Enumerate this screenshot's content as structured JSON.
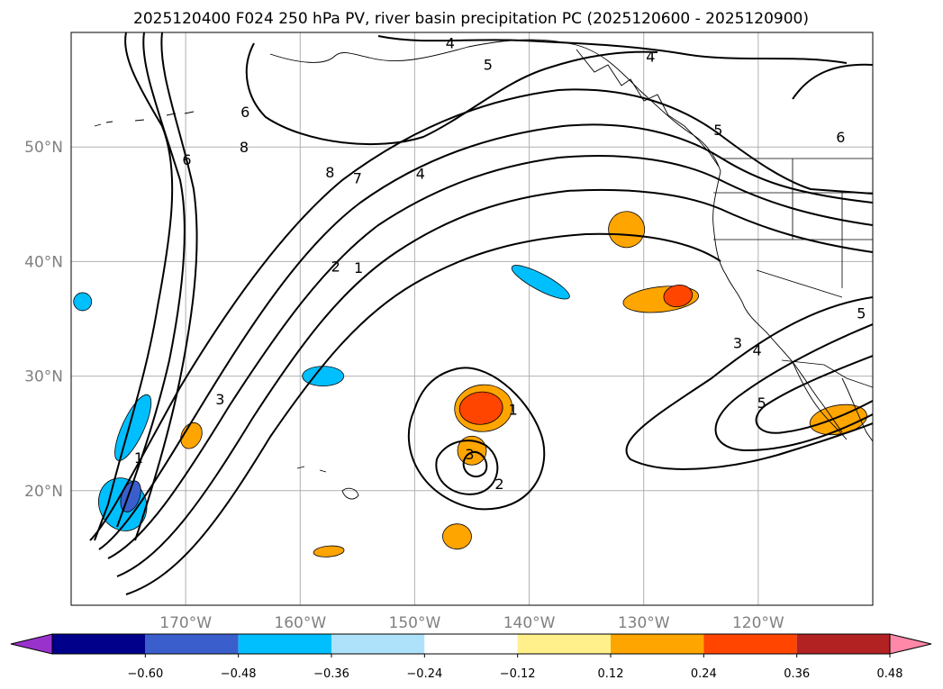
{
  "chart_data": {
    "type": "contour-map",
    "title": "2025120400 F024 250 hPa PV, river basin precipitation PC (2025120600 - 2025120900)",
    "lat_range": [
      10,
      60
    ],
    "lon_range": [
      -180,
      -110
    ],
    "lat_ticks": [
      {
        "value": 50,
        "label": "50°N"
      },
      {
        "value": 40,
        "label": "40°N"
      },
      {
        "value": 30,
        "label": "30°N"
      },
      {
        "value": 20,
        "label": "20°N"
      }
    ],
    "lon_ticks": [
      {
        "value": -170,
        "label": "170°W"
      },
      {
        "value": -160,
        "label": "160°W"
      },
      {
        "value": -150,
        "label": "150°W"
      },
      {
        "value": -140,
        "label": "140°W"
      },
      {
        "value": -130,
        "label": "130°W"
      },
      {
        "value": -120,
        "label": "120°W"
      }
    ],
    "colorbar": {
      "bounds": [
        -0.72,
        -0.6,
        -0.48,
        -0.36,
        -0.24,
        -0.12,
        0.12,
        0.24,
        0.36,
        0.48,
        0.6,
        0.72
      ],
      "colors": [
        "#9932cc",
        "#00008b",
        "#3a5fcd",
        "#00bfff",
        "#aee2fa",
        "#ffffff",
        "#fff08c",
        "#ffa500",
        "#ff4500",
        "#b22222",
        "#ff88a8"
      ],
      "extend": "both",
      "tick_labels": [
        "−0.60",
        "−0.48",
        "−0.36",
        "−0.24",
        "−0.12",
        "0.12",
        "0.24",
        "0.36",
        "0.48",
        "0.60"
      ]
    },
    "pv_contour_labels": [
      {
        "text": "4",
        "lon": -146.9,
        "lat": 59.1
      },
      {
        "text": "5",
        "lon": -143.6,
        "lat": 57.2
      },
      {
        "text": "4",
        "lon": -129.4,
        "lat": 57.9
      },
      {
        "text": "5",
        "lon": -123.5,
        "lat": 51.5
      },
      {
        "text": "6",
        "lon": -112.8,
        "lat": 50.9
      },
      {
        "text": "6",
        "lon": -164.8,
        "lat": 53.1
      },
      {
        "text": "8",
        "lon": -164.9,
        "lat": 50.0
      },
      {
        "text": "6",
        "lon": -169.9,
        "lat": 48.9
      },
      {
        "text": "8",
        "lon": -157.4,
        "lat": 47.8
      },
      {
        "text": "7",
        "lon": -155.0,
        "lat": 47.3
      },
      {
        "text": "4",
        "lon": -149.5,
        "lat": 47.7
      },
      {
        "text": "2",
        "lon": -156.9,
        "lat": 39.6
      },
      {
        "text": "1",
        "lon": -154.9,
        "lat": 39.5
      },
      {
        "text": "3",
        "lon": -167.0,
        "lat": 28.0
      },
      {
        "text": "1",
        "lon": -174.1,
        "lat": 22.9
      },
      {
        "text": "1",
        "lon": -141.4,
        "lat": 27.1
      },
      {
        "text": "3",
        "lon": -145.2,
        "lat": 23.2
      },
      {
        "text": "2",
        "lon": -142.6,
        "lat": 20.6
      },
      {
        "text": "3",
        "lon": -121.8,
        "lat": 32.9
      },
      {
        "text": "4",
        "lon": -120.1,
        "lat": 32.3
      },
      {
        "text": "5",
        "lon": -119.7,
        "lat": 27.7
      },
      {
        "text": "5",
        "lon": -111.0,
        "lat": 35.5
      }
    ],
    "precip_pc_regions": [
      {
        "name": "off-Oregon",
        "lon": -131.5,
        "lat": 42.8,
        "value": 0.3
      },
      {
        "name": "N-California-offshore",
        "lon": -128.5,
        "lat": 36.7,
        "value": 0.3
      },
      {
        "name": "N-California-core",
        "lon": -127.0,
        "lat": 37.0,
        "value": 0.42
      },
      {
        "name": "central-Pacific-N",
        "lon": -144.0,
        "lat": 27.2,
        "value": 0.3
      },
      {
        "name": "central-Pacific-N-core",
        "lon": -144.2,
        "lat": 27.2,
        "value": 0.42
      },
      {
        "name": "central-Pacific-S",
        "lon": -145.0,
        "lat": 23.5,
        "value": 0.3
      },
      {
        "name": "south-Pacific",
        "lon": -146.3,
        "lat": 16.0,
        "value": 0.3
      },
      {
        "name": "near-Hawaii",
        "lon": -157.5,
        "lat": 14.7,
        "value": 0.3
      },
      {
        "name": "west-small",
        "lon": -169.5,
        "lat": 24.8,
        "value": 0.3
      },
      {
        "name": "Mexico",
        "lon": -113.0,
        "lat": 26.2,
        "value": 0.3
      },
      {
        "name": "NE-Pacific-blue",
        "lon": -139.0,
        "lat": 38.2,
        "value": -0.3
      },
      {
        "name": "subtropical-blue",
        "lon": -158.0,
        "lat": 30.0,
        "value": -0.3
      },
      {
        "name": "far-west-blue",
        "lon": -179.0,
        "lat": 36.5,
        "value": -0.3
      },
      {
        "name": "west-chain-blue",
        "lon": -174.6,
        "lat": 25.5,
        "value": -0.3
      },
      {
        "name": "SW-blue",
        "lon": -175.5,
        "lat": 18.8,
        "value": -0.3
      },
      {
        "name": "SW-blue-core",
        "lon": -174.8,
        "lat": 19.5,
        "value": -0.42
      }
    ]
  }
}
